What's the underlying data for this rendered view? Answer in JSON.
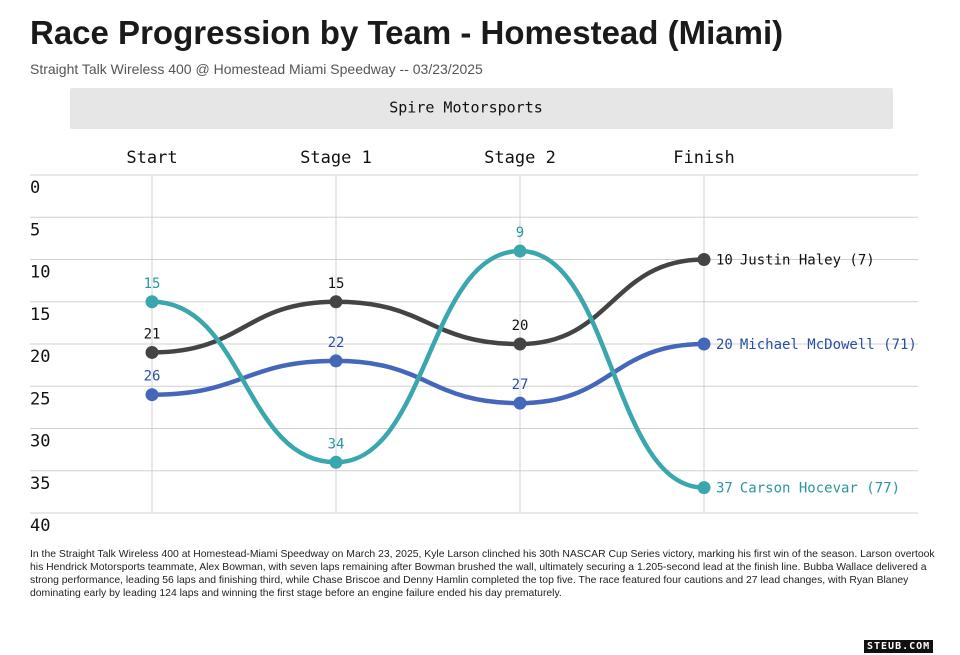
{
  "title": "Race Progression by Team - Homestead (Miami)",
  "subtitle": "Straight Talk Wireless 400 @ Homestead Miami Speedway -- 03/23/2025",
  "description": "In the Straight Talk Wireless 400 at Homestead-Miami Speedway on March 23, 2025, Kyle Larson clinched his 30th NASCAR Cup Series victory, marking his first win of the season. Larson overtook his Hendrick Motorsports teammate, Alex Bowman, with seven laps remaining after Bowman brushed the wall, ultimately securing a 1.205-second lead at the finish line. Bubba Wallace delivered a strong performance, leading 56 laps and finishing third, while Chase Briscoe and Denny Hamlin completed the top five. The race featured four cautions and 27 lead changes, with Ryan Blaney dominating early by leading 124 laps and winning the first stage before an engine failure ended his day prematurely.",
  "watermark": "STEUB.COM",
  "chart_data": {
    "type": "line",
    "title": "Spire Motorsports",
    "categories": [
      "Start",
      "Stage 1",
      "Stage 2",
      "Finish"
    ],
    "series": [
      {
        "name": "Justin Haley (7)",
        "color": "#444444",
        "label_color": "#111111",
        "values": [
          21,
          15,
          20,
          10
        ]
      },
      {
        "name": "Michael McDowell (71)",
        "color": "#4466bb",
        "label_color": "#2a4fa0",
        "values": [
          26,
          22,
          27,
          20
        ]
      },
      {
        "name": "Carson Hocevar (77)",
        "color": "#3aa6ad",
        "label_color": "#2a979e",
        "values": [
          15,
          34,
          9,
          37
        ]
      }
    ],
    "ylim": [
      0,
      40
    ],
    "yticks": [
      0,
      5,
      10,
      15,
      20,
      25,
      30,
      35,
      40
    ],
    "y_inverted": true,
    "grid": true
  }
}
